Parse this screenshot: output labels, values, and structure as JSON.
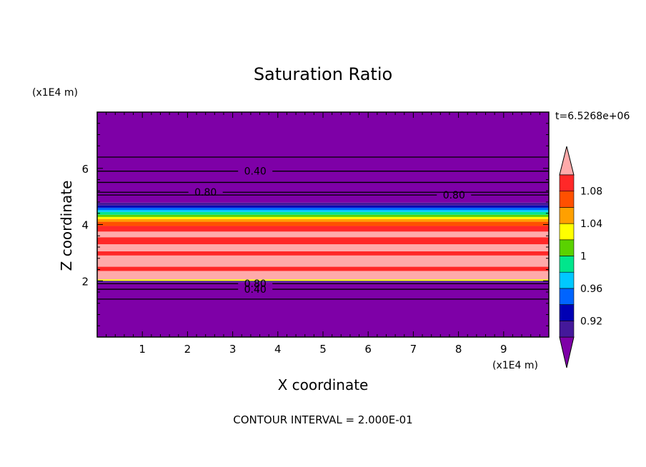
{
  "chart_data": {
    "type": "heatmap",
    "title": "Saturation Ratio",
    "xlabel": "X coordinate",
    "ylabel": "Z coordinate",
    "x_unit": "(x1E4 m)",
    "y_unit": "(x1E4 m)",
    "time_label": "t=6.5268e+06",
    "footer": "CONTOUR INTERVAL = 2.000E-01",
    "xlim": [
      0,
      10
    ],
    "ylim": [
      0,
      8
    ],
    "x_ticks": [
      "1",
      "2",
      "3",
      "4",
      "5",
      "6",
      "7",
      "8",
      "9"
    ],
    "y_ticks": [
      "2",
      "4",
      "6"
    ],
    "colorbar": {
      "labels": [
        "0.92",
        "0.96",
        "1",
        "1.04",
        "1.08"
      ],
      "levels": [
        0.9,
        0.92,
        0.94,
        0.96,
        0.98,
        1.0,
        1.02,
        1.04,
        1.06,
        1.08,
        1.1
      ],
      "colors": [
        "#7e00a7",
        "#44189a",
        "#0000b4",
        "#0064ff",
        "#00c8ff",
        "#00e68c",
        "#5ad200",
        "#ffff00",
        "#ffa000",
        "#ff5000",
        "#ff2828",
        "#ffaaaa"
      ]
    },
    "bands": [
      {
        "z0": 0.0,
        "z1": 1.95,
        "color": "#7e00a7"
      },
      {
        "z0": 1.95,
        "z1": 2.0,
        "color": "#44189a"
      },
      {
        "z0": 2.0,
        "z1": 2.05,
        "color": "#ffff00"
      },
      {
        "z0": 2.05,
        "z1": 2.35,
        "color": "#ffaaaa"
      },
      {
        "z0": 2.35,
        "z1": 2.5,
        "color": "#ff2828"
      },
      {
        "z0": 2.5,
        "z1": 2.9,
        "color": "#ffaaaa"
      },
      {
        "z0": 2.9,
        "z1": 3.05,
        "color": "#ff2828"
      },
      {
        "z0": 3.05,
        "z1": 3.3,
        "color": "#ffaaaa"
      },
      {
        "z0": 3.3,
        "z1": 3.55,
        "color": "#ff2828"
      },
      {
        "z0": 3.55,
        "z1": 3.75,
        "color": "#ffaaaa"
      },
      {
        "z0": 3.75,
        "z1": 3.95,
        "color": "#ff2828"
      },
      {
        "z0": 3.95,
        "z1": 4.1,
        "color": "#ff5000"
      },
      {
        "z0": 4.1,
        "z1": 4.2,
        "color": "#ffa000"
      },
      {
        "z0": 4.2,
        "z1": 4.27,
        "color": "#ffff00"
      },
      {
        "z0": 4.27,
        "z1": 4.35,
        "color": "#5ad200"
      },
      {
        "z0": 4.35,
        "z1": 4.45,
        "color": "#00e68c"
      },
      {
        "z0": 4.45,
        "z1": 4.52,
        "color": "#00c8ff"
      },
      {
        "z0": 4.52,
        "z1": 4.6,
        "color": "#0064ff"
      },
      {
        "z0": 4.6,
        "z1": 4.68,
        "color": "#0000b4"
      },
      {
        "z0": 4.68,
        "z1": 4.78,
        "color": "#44189a"
      },
      {
        "z0": 4.78,
        "z1": 8.0,
        "color": "#7e00a7"
      }
    ],
    "contours": [
      {
        "z": 6.4,
        "label": ""
      },
      {
        "z": 5.9,
        "label": "0.40",
        "label_x": 3.5
      },
      {
        "z": 5.5,
        "label": ""
      },
      {
        "z": 5.15,
        "label": "0.80",
        "label_x": 2.4
      },
      {
        "z": 5.05,
        "label": "0.80",
        "label_x": 7.9
      },
      {
        "z": 1.9,
        "label": "0.80",
        "label_x": 3.5
      },
      {
        "z": 1.7,
        "label": "0.40",
        "label_x": 3.5
      },
      {
        "z": 1.35,
        "label": ""
      }
    ]
  }
}
